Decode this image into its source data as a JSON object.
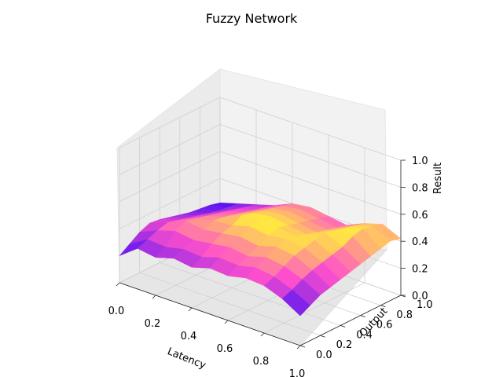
{
  "chart_data": {
    "type": "surface3d",
    "title": "Fuzzy Network",
    "xlabel": "Latency",
    "ylabel": "Output",
    "zlabel": "Result",
    "xlim": [
      0,
      1
    ],
    "ylim": [
      0,
      1
    ],
    "zlim": [
      0,
      1
    ],
    "x_ticks": [
      "0.0",
      "0.2",
      "0.4",
      "0.6",
      "0.8",
      "1.0"
    ],
    "y_ticks": [
      "0.0",
      "0.2",
      "0.4",
      "0.6",
      "0.8",
      "1.0"
    ],
    "z_ticks": [
      "0.0",
      "0.2",
      "0.4",
      "0.6",
      "0.8",
      "1.0"
    ],
    "grid": true,
    "colormap": "spring-to-blue (plasma-like)",
    "colors": {
      "low": "#1a00ff",
      "mid": "#ff55cc",
      "high": "#ffff33",
      "pane": "#f2f2f2",
      "grid": "#d9d9d9"
    },
    "x": [
      0.0,
      0.1,
      0.2,
      0.3,
      0.4,
      0.5,
      0.6,
      0.7,
      0.8,
      0.9,
      1.0
    ],
    "y": [
      0.0,
      0.1,
      0.2,
      0.3,
      0.4,
      0.5,
      0.6,
      0.7,
      0.8,
      0.9,
      1.0
    ],
    "z": [
      [
        0.2,
        0.3,
        0.28,
        0.32,
        0.3,
        0.34,
        0.33,
        0.36,
        0.35,
        0.3,
        0.22
      ],
      [
        0.25,
        0.33,
        0.32,
        0.35,
        0.34,
        0.38,
        0.37,
        0.4,
        0.38,
        0.33,
        0.26
      ],
      [
        0.3,
        0.36,
        0.4,
        0.38,
        0.4,
        0.42,
        0.4,
        0.44,
        0.42,
        0.37,
        0.3
      ],
      [
        0.33,
        0.38,
        0.44,
        0.42,
        0.44,
        0.46,
        0.44,
        0.48,
        0.46,
        0.4,
        0.32
      ],
      [
        0.32,
        0.36,
        0.42,
        0.45,
        0.46,
        0.5,
        0.48,
        0.5,
        0.48,
        0.42,
        0.34
      ],
      [
        0.3,
        0.34,
        0.4,
        0.44,
        0.5,
        0.52,
        0.5,
        0.48,
        0.5,
        0.44,
        0.36
      ],
      [
        0.28,
        0.32,
        0.38,
        0.42,
        0.48,
        0.5,
        0.48,
        0.46,
        0.52,
        0.46,
        0.38
      ],
      [
        0.26,
        0.3,
        0.36,
        0.4,
        0.46,
        0.48,
        0.46,
        0.44,
        0.5,
        0.5,
        0.4
      ],
      [
        0.25,
        0.28,
        0.34,
        0.38,
        0.44,
        0.46,
        0.44,
        0.42,
        0.48,
        0.52,
        0.42
      ],
      [
        0.24,
        0.27,
        0.32,
        0.36,
        0.42,
        0.44,
        0.42,
        0.4,
        0.46,
        0.5,
        0.44
      ],
      [
        0.22,
        0.26,
        0.3,
        0.34,
        0.4,
        0.42,
        0.4,
        0.38,
        0.44,
        0.48,
        0.42
      ]
    ]
  }
}
